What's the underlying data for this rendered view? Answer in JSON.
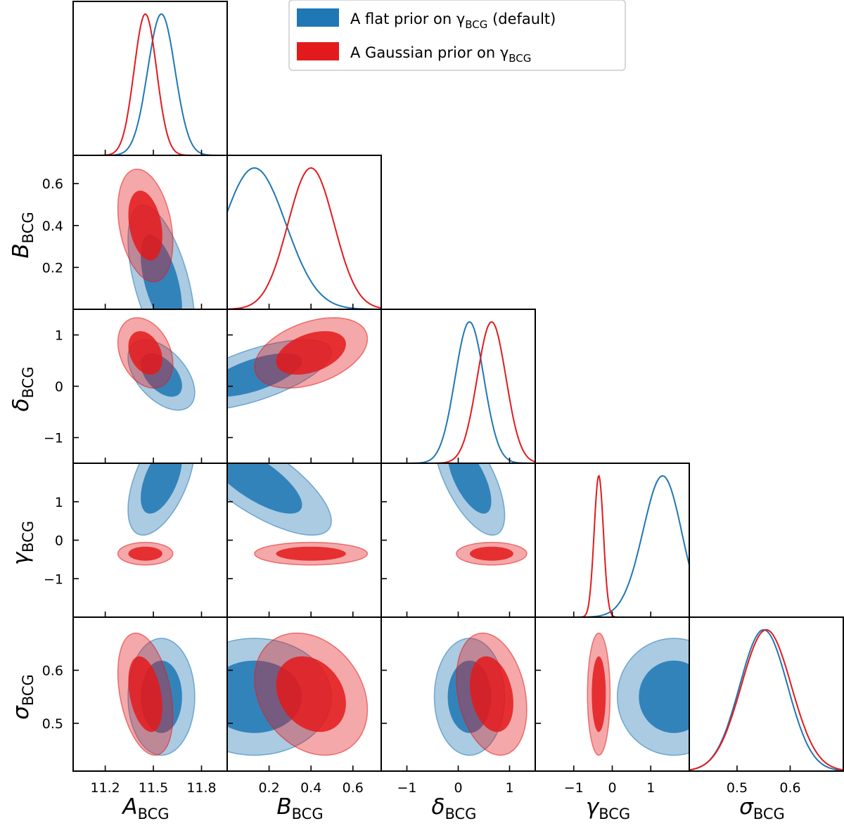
{
  "chart_data": {
    "type": "corner",
    "parameters": [
      {
        "id": "A",
        "symbol": "A",
        "subscript": "BCG",
        "range": [
          11.0,
          11.96
        ],
        "ticks": [
          11.2,
          11.5,
          11.8
        ],
        "tick_labels": [
          "11.2",
          "11.5",
          "11.8"
        ]
      },
      {
        "id": "B",
        "symbol": "B",
        "subscript": "BCG",
        "range": [
          0.0,
          0.735
        ],
        "ticks": [
          0.2,
          0.4,
          0.6
        ],
        "tick_labels": [
          "0.2",
          "0.4",
          "0.6"
        ]
      },
      {
        "id": "delta",
        "symbol": "δ",
        "subscript": "BCG",
        "range": [
          -1.5,
          1.5
        ],
        "ticks": [
          -1,
          0,
          1
        ],
        "tick_labels": [
          "−1",
          "0",
          "1"
        ]
      },
      {
        "id": "gamma",
        "symbol": "γ",
        "subscript": "BCG",
        "range": [
          -2.0,
          2.0
        ],
        "ticks": [
          -1,
          0,
          1
        ],
        "tick_labels": [
          "−1",
          "0",
          "1"
        ]
      },
      {
        "id": "sigma",
        "symbol": "σ",
        "subscript": "BCG",
        "range": [
          0.41,
          0.7
        ],
        "ticks": [
          0.5,
          0.6
        ],
        "tick_labels": [
          "0.5",
          "0.6"
        ]
      }
    ],
    "legend": {
      "location": "upper-center",
      "entries": [
        {
          "label": "A flat prior on γ",
          "subscript": "BCG",
          "suffix": " (default)",
          "color": "#1f77b4"
        },
        {
          "label": "A Gaussian prior on γ",
          "subscript": "BCG",
          "suffix": "",
          "color": "#e31a1c"
        }
      ]
    },
    "series": [
      {
        "name": "A flat prior on γBCG (default)",
        "color": "#1f77b4",
        "mean": {
          "A": 11.55,
          "B": 0.13,
          "delta": 0.22,
          "gamma": 1.6,
          "sigma": 0.55
        },
        "sd": {
          "A": 0.085,
          "B": 0.15,
          "delta": 0.28,
          "gamma": 0.6,
          "sigma": 0.045
        },
        "marginal_skew": {
          "gamma": -0.9
        },
        "corr": {
          "A|B": -0.55,
          "A|delta": -0.5,
          "A|gamma": 0.55,
          "A|sigma": 0.0,
          "B|delta": 0.65,
          "B|gamma": -0.75,
          "B|sigma": 0.0,
          "delta|gamma": -0.65,
          "delta|sigma": 0.0,
          "gamma|sigma": 0.0
        }
      },
      {
        "name": "A Gaussian prior on γBCG",
        "color": "#e31a1c",
        "mean": {
          "A": 11.45,
          "B": 0.4,
          "delta": 0.65,
          "gamma": -0.35,
          "sigma": 0.555
        },
        "sd": {
          "A": 0.07,
          "B": 0.11,
          "delta": 0.28,
          "gamma": 0.12,
          "sigma": 0.047
        },
        "marginal_skew": {},
        "corr": {
          "A|B": -0.3,
          "A|delta": -0.3,
          "A|gamma": 0.0,
          "A|sigma": -0.35,
          "B|delta": 0.4,
          "B|gamma": 0.0,
          "B|sigma": -0.25,
          "delta|gamma": 0.0,
          "delta|sigma": -0.25,
          "gamma|sigma": 0.0
        }
      }
    ],
    "contour_levels": [
      "68%",
      "95%"
    ]
  }
}
